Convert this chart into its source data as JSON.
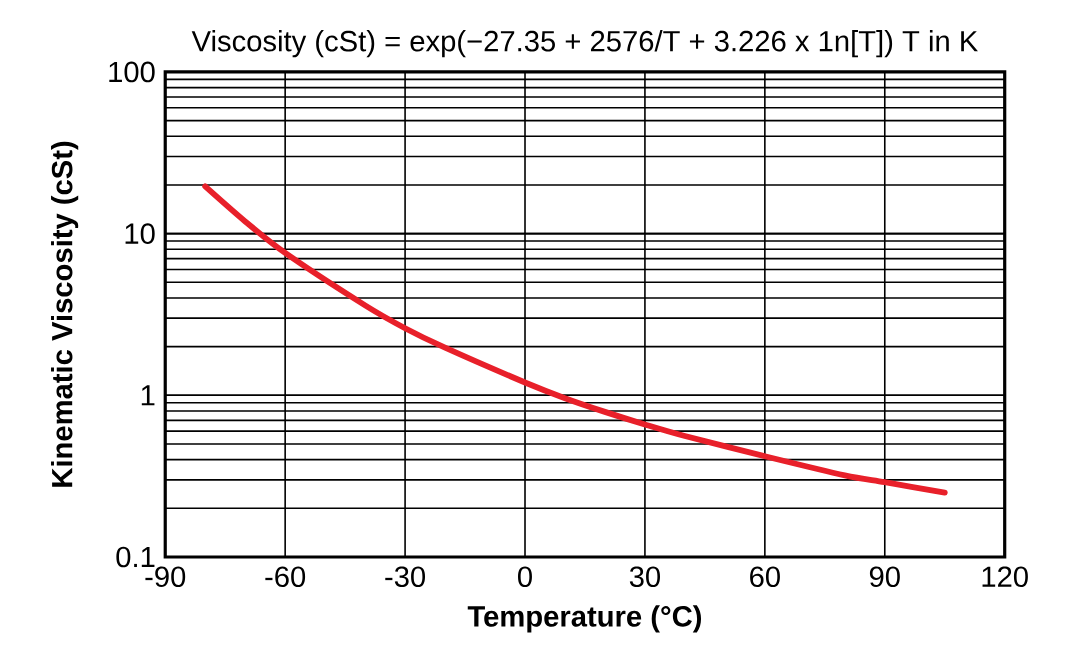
{
  "chart_data": {
    "type": "line",
    "title": "Viscosity (cSt) = exp(−27.35 + 2576/T + 3.226 x 1n[T])    T in K",
    "xlabel": "Temperature (°C)",
    "ylabel": "Kinematic Viscosity (cSt)",
    "x": [
      -80,
      -70,
      -60,
      -40,
      -30,
      -20,
      0,
      10,
      20,
      30,
      40,
      60,
      80,
      90,
      105
    ],
    "series": [
      {
        "color": "#e8202a",
        "values": [
          19.6,
          11.9,
          7.6,
          3.6,
          2.6,
          1.97,
          1.2,
          0.96,
          0.79,
          0.66,
          0.56,
          0.42,
          0.32,
          0.29,
          0.25
        ]
      }
    ],
    "log": "y",
    "grid": true,
    "marker": "none",
    "line_style": "solid",
    "xlim": [
      -90,
      120
    ],
    "xticks": [
      -90,
      -60,
      -30,
      0,
      30,
      60,
      90,
      120
    ],
    "ylim": [
      0.1,
      100
    ],
    "yticks": [
      0.1,
      1,
      10,
      100
    ]
  }
}
